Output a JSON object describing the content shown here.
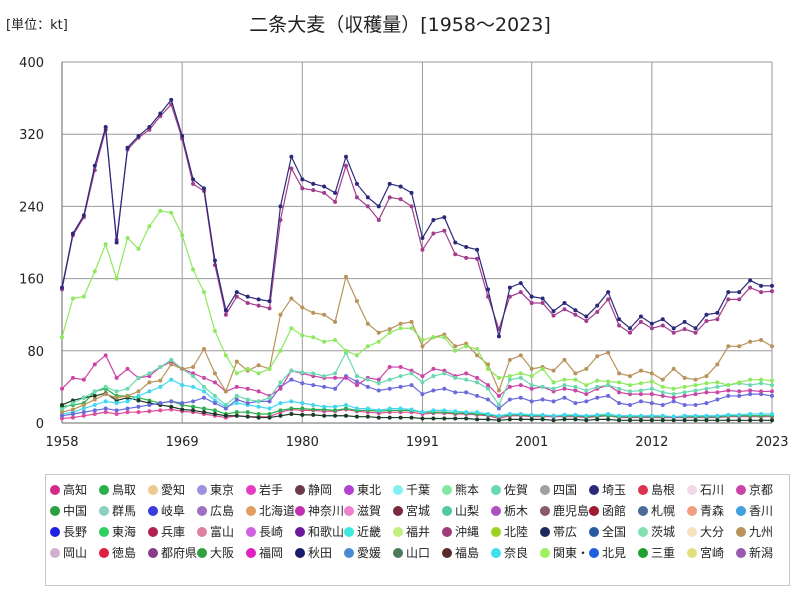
{
  "unit_label": "[単位：kt]",
  "title": "二条大麦（収穫量）[1958～2023]",
  "chart_data": {
    "type": "line",
    "title": "二条大麦（収穫量）[1958～2023]",
    "ylabel": "[単位：kt]",
    "xlim": [
      1958,
      2023
    ],
    "ylim": [
      0,
      400
    ],
    "x_ticks": [
      1958,
      1969,
      1980,
      1991,
      2001,
      2012,
      2023
    ],
    "y_ticks": [
      0,
      80,
      160,
      240,
      320,
      400
    ],
    "grid": true,
    "legend_position": "bottom",
    "x": [
      1958,
      1959,
      1960,
      1961,
      1962,
      1963,
      1964,
      1965,
      1966,
      1967,
      1968,
      1969,
      1970,
      1971,
      1972,
      1973,
      1974,
      1975,
      1976,
      1977,
      1978,
      1979,
      1980,
      1981,
      1982,
      1983,
      1984,
      1985,
      1986,
      1987,
      1988,
      1989,
      1990,
      1991,
      1992,
      1993,
      1994,
      1995,
      1996,
      1997,
      1998,
      1999,
      2000,
      2001,
      2002,
      2003,
      2004,
      2005,
      2006,
      2007,
      2008,
      2009,
      2010,
      2011,
      2012,
      2013,
      2014,
      2015,
      2016,
      2017,
      2018,
      2019,
      2020,
      2021,
      2022,
      2023
    ],
    "series": [
      {
        "name": "全国",
        "color": "#2a2a7a",
        "values": [
          150,
          210,
          230,
          285,
          328,
          200,
          305,
          318,
          328,
          343,
          358,
          318,
          270,
          260,
          180,
          125,
          145,
          140,
          137,
          135,
          240,
          295,
          270,
          265,
          262,
          255,
          295,
          265,
          250,
          240,
          265,
          262,
          255,
          205,
          225,
          228,
          200,
          195,
          192,
          148,
          96,
          150,
          155,
          140,
          138,
          124,
          133,
          125,
          118,
          130,
          145,
          115,
          105,
          118,
          110,
          115,
          105,
          112,
          105,
          120,
          122,
          145,
          145,
          158,
          152,
          152
        ]
      },
      {
        "name": "関東・東山",
        "color": "#a23c8c",
        "values": [
          148,
          208,
          228,
          280,
          325,
          203,
          303,
          316,
          325,
          340,
          353,
          315,
          265,
          257,
          175,
          120,
          140,
          133,
          130,
          127,
          225,
          282,
          260,
          258,
          255,
          245,
          285,
          250,
          240,
          225,
          250,
          248,
          240,
          192,
          210,
          213,
          187,
          183,
          182,
          140,
          104,
          140,
          145,
          133,
          133,
          119,
          126,
          120,
          113,
          123,
          137,
          108,
          100,
          112,
          105,
          108,
          100,
          104,
          100,
          113,
          115,
          137,
          137,
          150,
          145,
          146
        ]
      },
      {
        "name": "栃木",
        "color": "#8fe860",
        "values": [
          95,
          138,
          140,
          168,
          198,
          160,
          205,
          193,
          218,
          235,
          233,
          208,
          170,
          145,
          102,
          75,
          55,
          60,
          55,
          60,
          80,
          105,
          97,
          95,
          90,
          92,
          80,
          75,
          85,
          90,
          100,
          105,
          105,
          92,
          95,
          95,
          80,
          85,
          82,
          60,
          50,
          52,
          55,
          52,
          60,
          45,
          48,
          48,
          42,
          47,
          46,
          45,
          42,
          44,
          46,
          40,
          38,
          40,
          42,
          44,
          45,
          42,
          45,
          48,
          48,
          47
        ]
      },
      {
        "name": "九州",
        "color": "#b8935a",
        "values": [
          12,
          15,
          20,
          26,
          32,
          28,
          30,
          35,
          45,
          47,
          65,
          60,
          62,
          82,
          55,
          35,
          68,
          58,
          64,
          60,
          120,
          138,
          128,
          122,
          120,
          112,
          162,
          135,
          110,
          100,
          104,
          110,
          112,
          85,
          95,
          98,
          85,
          88,
          75,
          65,
          36,
          70,
          75,
          60,
          62,
          58,
          70,
          55,
          60,
          74,
          78,
          55,
          52,
          58,
          55,
          48,
          60,
          50,
          48,
          52,
          65,
          85,
          85,
          90,
          92,
          85
        ]
      },
      {
        "name": "茨城",
        "color": "#6bd9b0",
        "values": [
          15,
          22,
          28,
          35,
          40,
          35,
          38,
          50,
          55,
          62,
          70,
          60,
          52,
          40,
          30,
          20,
          30,
          26,
          24,
          28,
          45,
          58,
          56,
          55,
          52,
          55,
          78,
          52,
          48,
          44,
          48,
          52,
          55,
          45,
          52,
          55,
          50,
          48,
          45,
          38,
          20,
          48,
          50,
          42,
          40,
          38,
          42,
          40,
          36,
          40,
          42,
          38,
          35,
          36,
          38,
          34,
          32,
          34,
          36,
          38,
          40,
          42,
          44,
          42,
          44,
          42
        ]
      },
      {
        "name": "群馬",
        "color": "#cc44a8",
        "values": [
          38,
          50,
          48,
          65,
          75,
          50,
          60,
          50,
          52,
          62,
          68,
          60,
          55,
          50,
          45,
          35,
          40,
          38,
          35,
          30,
          38,
          58,
          55,
          52,
          50,
          50,
          50,
          42,
          50,
          48,
          62,
          62,
          58,
          52,
          60,
          58,
          52,
          55,
          50,
          42,
          30,
          40,
          42,
          38,
          40,
          35,
          38,
          36,
          32,
          38,
          42,
          34,
          32,
          32,
          32,
          30,
          28,
          30,
          32,
          34,
          34,
          36,
          35,
          36,
          35,
          35
        ]
      },
      {
        "name": "佐賀",
        "color": "#6a6adc",
        "values": [
          8,
          10,
          12,
          14,
          16,
          14,
          16,
          18,
          20,
          22,
          24,
          22,
          24,
          28,
          22,
          16,
          26,
          22,
          24,
          24,
          40,
          48,
          44,
          42,
          40,
          38,
          52,
          46,
          40,
          36,
          38,
          40,
          42,
          32,
          36,
          38,
          34,
          34,
          30,
          26,
          16,
          26,
          28,
          24,
          26,
          24,
          28,
          22,
          24,
          28,
          30,
          22,
          20,
          24,
          22,
          20,
          24,
          20,
          20,
          22,
          26,
          30,
          30,
          32,
          32,
          30
        ]
      },
      {
        "name": "福岡",
        "color": "#40d8f0",
        "values": [
          10,
          12,
          16,
          20,
          24,
          22,
          24,
          30,
          35,
          40,
          48,
          42,
          40,
          35,
          25,
          18,
          22,
          20,
          18,
          16,
          22,
          24,
          22,
          20,
          18,
          18,
          20,
          16,
          16,
          14,
          16,
          16,
          15,
          12,
          14,
          14,
          13,
          12,
          12,
          10,
          8,
          10,
          10,
          9,
          9,
          8,
          9,
          9,
          8,
          9,
          10,
          8,
          8,
          8,
          8,
          8,
          7,
          8,
          8,
          8,
          8,
          9,
          9,
          10,
          10,
          10
        ]
      },
      {
        "name": "埼玉",
        "color": "#1c3a28",
        "values": [
          20,
          25,
          28,
          30,
          33,
          25,
          28,
          25,
          22,
          20,
          18,
          15,
          14,
          12,
          10,
          8,
          8,
          7,
          6,
          6,
          8,
          10,
          9,
          9,
          8,
          8,
          8,
          7,
          7,
          6,
          6,
          6,
          6,
          5,
          5,
          5,
          5,
          5,
          4,
          4,
          3,
          4,
          4,
          4,
          4,
          3,
          4,
          4,
          3,
          4,
          4,
          3,
          3,
          3,
          3,
          3,
          3,
          3,
          3,
          3,
          3,
          3,
          3,
          3,
          3,
          3
        ]
      },
      {
        "name": "岡山",
        "color": "#2ab04a",
        "values": [
          18,
          20,
          22,
          35,
          38,
          30,
          30,
          28,
          25,
          22,
          24,
          20,
          18,
          16,
          14,
          10,
          12,
          12,
          10,
          10,
          14,
          16,
          16,
          15,
          15,
          14,
          16,
          14,
          14,
          13,
          14,
          14,
          14,
          12,
          12,
          12,
          11,
          11,
          10,
          9,
          7,
          9,
          9,
          8,
          8,
          8,
          8,
          8,
          7,
          8,
          8,
          7,
          7,
          7,
          7,
          7,
          7,
          7,
          7,
          7,
          7,
          8,
          8,
          8,
          8,
          8
        ]
      },
      {
        "name": "長野",
        "color": "#e04a9a",
        "values": [
          5,
          6,
          8,
          10,
          12,
          10,
          12,
          12,
          13,
          14,
          15,
          13,
          12,
          10,
          8,
          6,
          8,
          7,
          7,
          7,
          12,
          15,
          14,
          14,
          13,
          13,
          15,
          13,
          12,
          11,
          12,
          12,
          12,
          10,
          11,
          11,
          10,
          10,
          9,
          8,
          5,
          8,
          8,
          7,
          7,
          7,
          7,
          7,
          6,
          7,
          8,
          6,
          6,
          6,
          6,
          6,
          6,
          6,
          6,
          6,
          6,
          7,
          7,
          7,
          7,
          7
        ]
      }
    ]
  },
  "legend": [
    {
      "label": "高知",
      "color": "#d42a8a"
    },
    {
      "label": "鳥取",
      "color": "#2ab04a"
    },
    {
      "label": "愛知",
      "color": "#f0c890"
    },
    {
      "label": "東京",
      "color": "#a090e0"
    },
    {
      "label": "岩手",
      "color": "#e83cc0"
    },
    {
      "label": "静岡",
      "color": "#6a3a4a"
    },
    {
      "label": "東北",
      "color": "#b040d0"
    },
    {
      "label": "千葉",
      "color": "#80f0f0"
    },
    {
      "label": "熊本",
      "color": "#80e8a0"
    },
    {
      "label": "佐賀",
      "color": "#6bd9b0"
    },
    {
      "label": "四国",
      "color": "#a0a0a0"
    },
    {
      "label": "埼玉",
      "color": "#2a2a7a"
    },
    {
      "label": "島根",
      "color": "#e03050"
    },
    {
      "label": "石川",
      "color": "#f0d8e8"
    },
    {
      "label": "京都",
      "color": "#cc44a8"
    },
    {
      "label": "中国",
      "color": "#2aa040"
    },
    {
      "label": "群馬",
      "color": "#8ad0c0"
    },
    {
      "label": "岐阜",
      "color": "#3a3ae0"
    },
    {
      "label": "広島",
      "color": "#a070c0"
    },
    {
      "label": "北海道",
      "color": "#e0a060"
    },
    {
      "label": "神奈川",
      "color": "#c030b0"
    },
    {
      "label": "滋賀",
      "color": "#f080d0"
    },
    {
      "label": "宮城",
      "color": "#7a2a3a"
    },
    {
      "label": "山梨",
      "color": "#50c8a0"
    },
    {
      "label": "栃木",
      "color": "#b050c0"
    },
    {
      "label": "鹿児島",
      "color": "#8a5a6a"
    },
    {
      "label": "函館",
      "color": "#a01a30"
    },
    {
      "label": "札幌",
      "color": "#4a6a9a"
    },
    {
      "label": "青森",
      "color": "#f0a080"
    },
    {
      "label": "香川",
      "color": "#40a0e0"
    },
    {
      "label": "長野",
      "color": "#2020e0"
    },
    {
      "label": "東海",
      "color": "#30d060"
    },
    {
      "label": "兵庫",
      "color": "#b02050"
    },
    {
      "label": "富山",
      "color": "#e080a0"
    },
    {
      "label": "長崎",
      "color": "#d060e0"
    },
    {
      "label": "和歌山",
      "color": "#6a1a9a"
    },
    {
      "label": "近畿",
      "color": "#40e8e0"
    },
    {
      "label": "福井",
      "color": "#c0f080"
    },
    {
      "label": "沖縄",
      "color": "#a03a7a"
    },
    {
      "label": "北陸",
      "color": "#a0d020"
    },
    {
      "label": "帯広",
      "color": "#1a2a5a"
    },
    {
      "label": "全国",
      "color": "#2a5aa0"
    },
    {
      "label": "茨城",
      "color": "#80e0b0"
    },
    {
      "label": "大分",
      "color": "#f8e0c0"
    },
    {
      "label": "九州",
      "color": "#b8935a"
    },
    {
      "label": "岡山",
      "color": "#d0b0d0"
    },
    {
      "label": "徳島",
      "color": "#e02040"
    },
    {
      "label": "都府県",
      "color": "#8a3a8a"
    },
    {
      "label": "大阪",
      "color": "#30a040"
    },
    {
      "label": "福岡",
      "color": "#e020c0"
    },
    {
      "label": "秋田",
      "color": "#1a1a6a"
    },
    {
      "label": "愛媛",
      "color": "#4a8ad0"
    },
    {
      "label": "山口",
      "color": "#4a7a5a"
    },
    {
      "label": "福島",
      "color": "#5a2a2a"
    },
    {
      "label": "奈良",
      "color": "#40e0f0"
    },
    {
      "label": "関東・東山",
      "color": "#a0f060"
    },
    {
      "label": "北見",
      "color": "#2060e0"
    },
    {
      "label": "三重",
      "color": "#20a030"
    },
    {
      "label": "宮崎",
      "color": "#e0e080"
    },
    {
      "label": "新潟",
      "color": "#9a5ab0"
    }
  ]
}
